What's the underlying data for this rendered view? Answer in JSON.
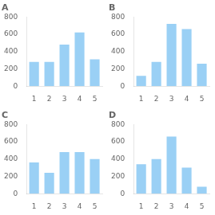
{
  "chart_data": [
    {
      "type": "bar",
      "title": "A",
      "categories": [
        "1",
        "2",
        "3",
        "4",
        "5"
      ],
      "values": [
        280,
        280,
        480,
        620,
        310
      ],
      "ylim": [
        0,
        800
      ],
      "yticks": [
        0,
        200,
        400,
        600,
        800
      ],
      "grid": false
    },
    {
      "type": "bar",
      "title": "B",
      "categories": [
        "1",
        "2",
        "3",
        "4",
        "5"
      ],
      "values": [
        120,
        280,
        720,
        660,
        260
      ],
      "ylim": [
        0,
        800
      ],
      "yticks": [
        0,
        200,
        400,
        600,
        800
      ],
      "grid": false
    },
    {
      "type": "bar",
      "title": "C",
      "categories": [
        "1",
        "2",
        "3",
        "4",
        "5"
      ],
      "values": [
        360,
        240,
        480,
        480,
        400
      ],
      "ylim": [
        0,
        800
      ],
      "yticks": [
        0,
        200,
        400,
        600,
        800
      ],
      "grid": false
    },
    {
      "type": "bar",
      "title": "D",
      "categories": [
        "1",
        "2",
        "3",
        "4",
        "5"
      ],
      "values": [
        340,
        400,
        660,
        300,
        80
      ],
      "ylim": [
        0,
        800
      ],
      "yticks": [
        0,
        200,
        400,
        600,
        800
      ],
      "grid": false
    }
  ]
}
